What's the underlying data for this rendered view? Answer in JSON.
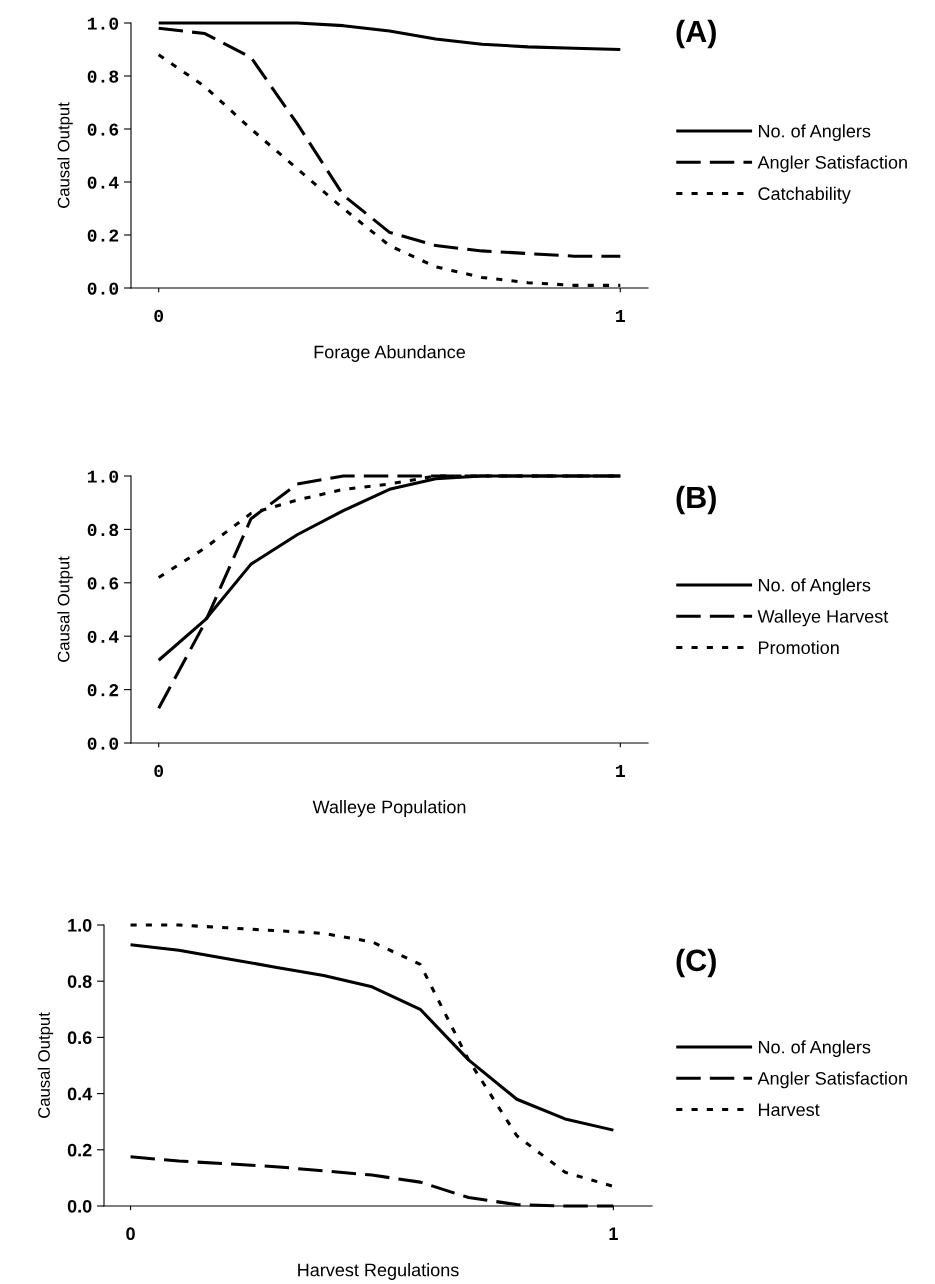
{
  "chart_data": [
    {
      "type": "line",
      "xlabel": "Forage Abundance",
      "ylabel": "Causal Output",
      "annotations": [
        "(A)"
      ],
      "legend": "right",
      "grid": false,
      "x": [
        0,
        0.1,
        0.2,
        0.3,
        0.4,
        0.5,
        0.6,
        0.7,
        0.8,
        0.9,
        1.0
      ],
      "xlim": [
        -0.06,
        1.06
      ],
      "xticks": [
        0,
        1
      ],
      "ylim": [
        0,
        1.0
      ],
      "yticks": [
        {
          "value": 0,
          "label": "0.0"
        },
        {
          "value": 0.2,
          "label": "0.2"
        },
        {
          "value": 0.4,
          "label": "0.4"
        },
        {
          "value": 0.6,
          "label": "0.6"
        },
        {
          "value": 0.8,
          "label": "0.8"
        },
        {
          "value": 1,
          "label": "1.0"
        }
      ],
      "series": [
        {
          "name": "No. of Anglers",
          "color": "#000000",
          "line_style": "solid",
          "values": [
            1.0,
            1.0,
            1.0,
            1.0,
            0.99,
            0.97,
            0.94,
            0.92,
            0.91,
            0.905,
            0.9
          ]
        },
        {
          "name": "Angler Satisfaction",
          "color": "#000000",
          "line_style": "dashed",
          "values": [
            0.98,
            0.96,
            0.87,
            0.62,
            0.35,
            0.21,
            0.16,
            0.14,
            0.13,
            0.12,
            0.12
          ]
        },
        {
          "name": "Catchability",
          "color": "#000000",
          "line_style": "dotted",
          "values": [
            0.88,
            0.76,
            0.6,
            0.45,
            0.3,
            0.16,
            0.08,
            0.04,
            0.02,
            0.01,
            0.01
          ]
        }
      ]
    },
    {
      "type": "line",
      "xlabel": "Walleye Population",
      "ylabel": "Causal Output",
      "annotations": [
        "(B)"
      ],
      "legend": "right",
      "grid": false,
      "x": [
        0,
        0.1,
        0.2,
        0.3,
        0.4,
        0.5,
        0.6,
        0.7,
        0.8,
        0.9,
        1.0
      ],
      "xlim": [
        -0.06,
        1.06
      ],
      "xticks": [
        0,
        1
      ],
      "ylim": [
        0,
        1.0
      ],
      "yticks": [
        {
          "value": 0,
          "label": "0.0"
        },
        {
          "value": 0.2,
          "label": "0.2"
        },
        {
          "value": 0.4,
          "label": "0.4"
        },
        {
          "value": 0.6,
          "label": "0.6"
        },
        {
          "value": 0.8,
          "label": "0.8"
        },
        {
          "value": 1,
          "label": "1.0"
        }
      ],
      "series": [
        {
          "name": "No. of Anglers",
          "color": "#000000",
          "line_style": "solid",
          "values": [
            0.31,
            0.46,
            0.67,
            0.78,
            0.87,
            0.95,
            0.99,
            1.0,
            1.0,
            1.0,
            1.0
          ]
        },
        {
          "name": "Walleye Harvest",
          "color": "#000000",
          "line_style": "dashed",
          "values": [
            0.13,
            0.45,
            0.84,
            0.97,
            1.0,
            1.0,
            1.0,
            1.0,
            1.0,
            1.0,
            1.0
          ]
        },
        {
          "name": "Promotion",
          "color": "#000000",
          "line_style": "dotted",
          "values": [
            0.62,
            0.73,
            0.86,
            0.91,
            0.95,
            0.97,
            1.0,
            1.0,
            1.0,
            1.0,
            1.0
          ]
        }
      ]
    },
    {
      "type": "line",
      "xlabel": "Harvest Regulations",
      "ylabel": "Causal Output",
      "annotations": [
        "(C)"
      ],
      "legend": "right",
      "grid": false,
      "x": [
        0,
        0.1,
        0.2,
        0.3,
        0.4,
        0.5,
        0.6,
        0.7,
        0.8,
        0.9,
        1.0
      ],
      "xlim": [
        -0.055,
        1.08
      ],
      "xticks": [
        0,
        1
      ],
      "ylim": [
        0,
        1.0
      ],
      "yticks": [
        {
          "value": 0,
          "label": "0.0"
        },
        {
          "value": 0.2,
          "label": "0.2"
        },
        {
          "value": 0.4,
          "label": "0.4"
        },
        {
          "value": 0.6,
          "label": "0.6"
        },
        {
          "value": 0.8,
          "label": "0.8"
        },
        {
          "value": 1,
          "label": "1.0"
        }
      ],
      "series": [
        {
          "name": "No. of Anglers",
          "color": "#000000",
          "line_style": "solid",
          "values": [
            0.93,
            0.91,
            0.88,
            0.85,
            0.82,
            0.78,
            0.7,
            0.52,
            0.38,
            0.31,
            0.27
          ]
        },
        {
          "name": "Angler Satisfaction",
          "color": "#000000",
          "line_style": "dashed",
          "values": [
            0.175,
            0.16,
            0.15,
            0.14,
            0.125,
            0.11,
            0.085,
            0.03,
            0.005,
            0.0,
            0.0
          ]
        },
        {
          "name": "Harvest",
          "color": "#000000",
          "line_style": "dotted",
          "values": [
            1.0,
            1.0,
            0.99,
            0.98,
            0.97,
            0.94,
            0.86,
            0.52,
            0.25,
            0.12,
            0.07
          ]
        }
      ]
    }
  ]
}
